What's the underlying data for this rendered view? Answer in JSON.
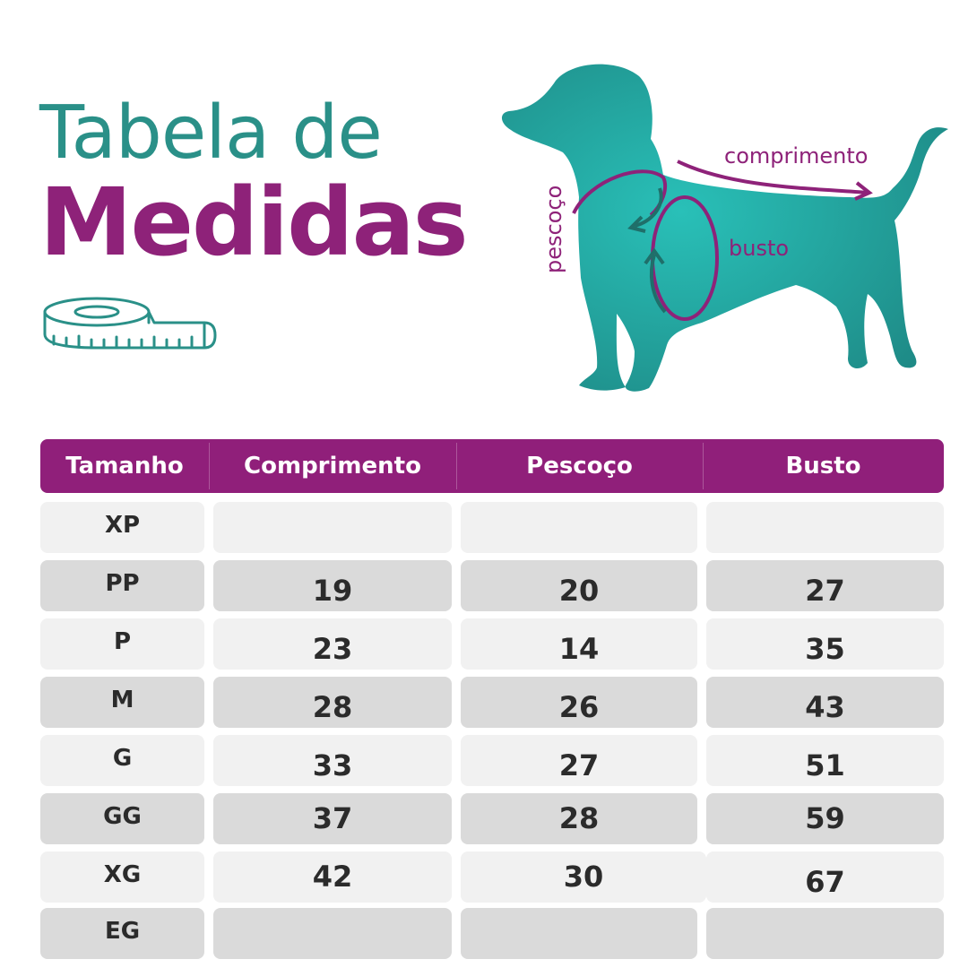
{
  "title": {
    "line1": "Tabela de",
    "line2": "Medidas"
  },
  "diagram_labels": {
    "length": "comprimento",
    "neck": "pescoço",
    "chest": "busto"
  },
  "colors": {
    "teal": "#2a9088",
    "purple": "#8e2279",
    "header_bg": "#901f7a"
  },
  "icons": {
    "tape": "measuring-tape-icon",
    "dog": "dog-silhouette"
  },
  "table": {
    "headers": [
      "Tamanho",
      "Comprimento",
      "Pescoço",
      "Busto"
    ],
    "rows": [
      {
        "size": "XP",
        "comprimento": "",
        "pescoco": "",
        "busto": ""
      },
      {
        "size": "PP",
        "comprimento": "19",
        "pescoco": "20",
        "busto": "27"
      },
      {
        "size": "P",
        "comprimento": "23",
        "pescoco": "14",
        "busto": "35"
      },
      {
        "size": "M",
        "comprimento": "28",
        "pescoco": "26",
        "busto": "43"
      },
      {
        "size": "G",
        "comprimento": "33",
        "pescoco": "27",
        "busto": "51"
      },
      {
        "size": "GG",
        "comprimento": "37",
        "pescoco": "28",
        "busto": "59"
      },
      {
        "size": "XG",
        "comprimento": "42",
        "pescoco": "30",
        "busto": "67"
      },
      {
        "size": "EG",
        "comprimento": "",
        "pescoco": "",
        "busto": ""
      }
    ]
  }
}
